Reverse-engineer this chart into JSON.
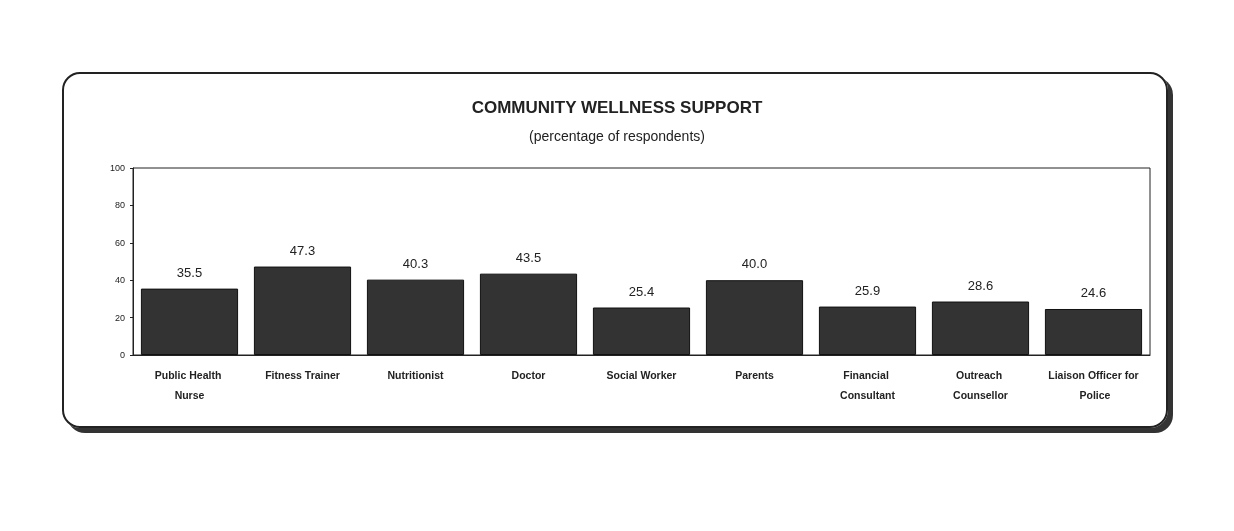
{
  "chart_data": {
    "type": "bar",
    "title": "COMMUNITY WELLNESS SUPPORT",
    "subtitle": "(percentage of respondents)",
    "categories": [
      "Public Health Nurse",
      "Fitness Trainer",
      "Nutritionist",
      "Doctor",
      "Social Worker",
      "Parents",
      "Financial Consultant",
      "Outreach Counsellor",
      "Liaison Officer for Police"
    ],
    "values": [
      35.5,
      47.3,
      40.3,
      43.5,
      25.4,
      40.0,
      25.9,
      28.6,
      24.6
    ],
    "value_labels": [
      "35.5",
      "47.3",
      "40.3",
      "43.5",
      "25.4",
      "40.0",
      "25.9",
      "28.6",
      "24.6"
    ],
    "color": "#333333",
    "ylim": [
      0,
      100
    ],
    "yticks": [
      0,
      20,
      40,
      60,
      80,
      100
    ],
    "grid": false
  }
}
